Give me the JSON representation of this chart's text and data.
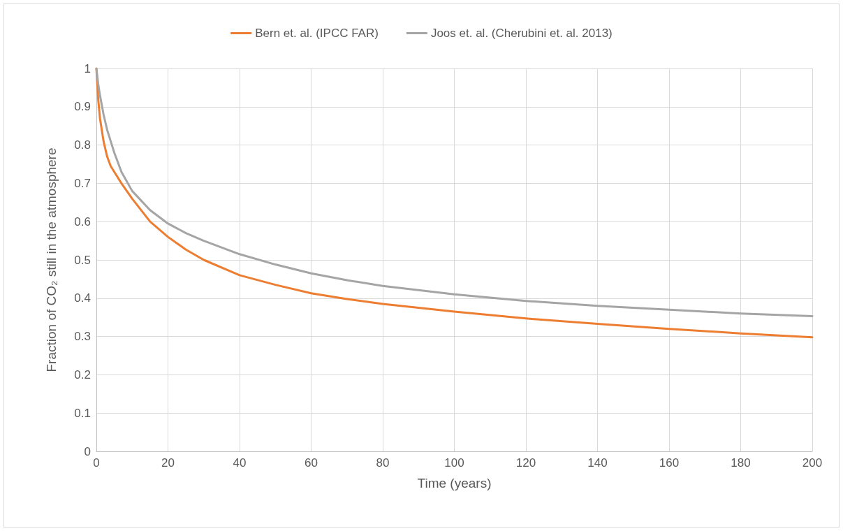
{
  "chart_data": {
    "type": "line",
    "xlabel": "Time (years)",
    "ylabel": "Fraction of CO₂ still in the atmosphere",
    "xlim": [
      0,
      200
    ],
    "xticks": [
      0,
      20,
      40,
      60,
      80,
      100,
      120,
      140,
      160,
      180,
      200
    ],
    "ylim": [
      0,
      1
    ],
    "yticks": [
      0,
      0.1,
      0.2,
      0.3,
      0.4,
      0.5,
      0.6,
      0.7,
      0.8,
      0.9,
      1
    ],
    "grid": true,
    "legend": "top",
    "marker": "none",
    "line_style": "solid",
    "series": [
      {
        "name": "Bern et. al. (IPCC FAR)",
        "color": "#ed7d31",
        "x": [
          0,
          0.5,
          1,
          2,
          3,
          4,
          5,
          7,
          10,
          15,
          20,
          25,
          30,
          40,
          50,
          60,
          70,
          80,
          100,
          120,
          140,
          160,
          180,
          200
        ],
        "values": [
          1,
          0.92,
          0.87,
          0.81,
          0.77,
          0.745,
          0.73,
          0.7,
          0.66,
          0.6,
          0.56,
          0.527,
          0.5,
          0.46,
          0.435,
          0.413,
          0.398,
          0.385,
          0.365,
          0.347,
          0.333,
          0.32,
          0.308,
          0.298
        ]
      },
      {
        "name": "Joos et. al. (Cherubini et. al. 2013)",
        "color": "#a5a5a5",
        "x": [
          0,
          0.5,
          1,
          2,
          3,
          4,
          5,
          7,
          10,
          15,
          20,
          25,
          30,
          40,
          50,
          60,
          70,
          80,
          100,
          120,
          140,
          160,
          180,
          200
        ],
        "values": [
          1,
          0.96,
          0.93,
          0.88,
          0.84,
          0.81,
          0.78,
          0.73,
          0.68,
          0.63,
          0.595,
          0.57,
          0.55,
          0.515,
          0.488,
          0.465,
          0.447,
          0.432,
          0.41,
          0.393,
          0.38,
          0.37,
          0.36,
          0.353
        ]
      }
    ]
  }
}
